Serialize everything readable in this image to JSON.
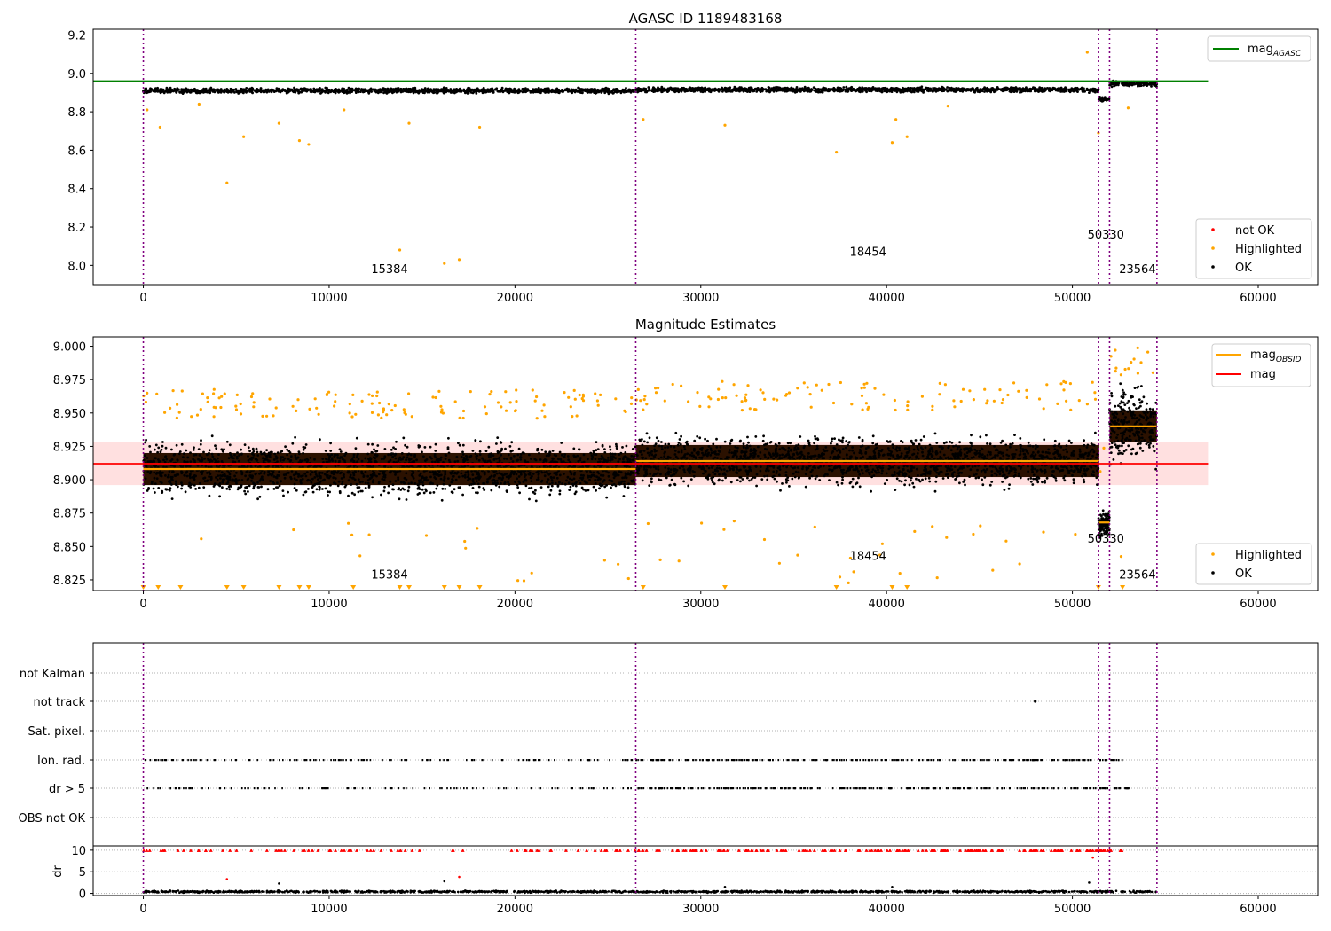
{
  "chart_data": [
    {
      "type": "scatter",
      "title": "AGASC ID 1189483168",
      "xlim": [
        -2700,
        63200
      ],
      "ylim": [
        7.9,
        9.23
      ],
      "xticks": [
        "0",
        "10000",
        "20000",
        "30000",
        "40000",
        "50000",
        "60000"
      ],
      "yticks": [
        "8.0",
        "8.2",
        "8.4",
        "8.6",
        "8.8",
        "9.0",
        "9.2"
      ],
      "reference_line": {
        "name": "mag_AGASC",
        "value": 8.96,
        "x_range": [
          -2700,
          57300
        ],
        "color": "#008000"
      },
      "observation_boundaries": [
        0,
        26500,
        51400,
        52000,
        54550
      ],
      "observation_labels": [
        {
          "text": "15384",
          "x": 13250,
          "y": 7.96
        },
        {
          "text": "18454",
          "x": 39000,
          "y": 8.05
        },
        {
          "text": "50330",
          "x": 51800,
          "y": 8.14
        },
        {
          "text": "23564",
          "x": 53500,
          "y": 7.96
        }
      ],
      "series": [
        {
          "name": "not OK",
          "color": "#ff0000",
          "values": []
        },
        {
          "name": "Highlighted",
          "color": "#ffa500",
          "points": [
            [
              4500,
              8.43
            ],
            [
              13800,
              8.08
            ],
            [
              16200,
              8.01
            ],
            [
              17000,
              8.03
            ],
            [
              37300,
              8.59
            ],
            [
              5400,
              8.67
            ],
            [
              900,
              8.72
            ],
            [
              7300,
              8.74
            ],
            [
              8400,
              8.65
            ],
            [
              8900,
              8.63
            ],
            [
              14300,
              8.74
            ],
            [
              18100,
              8.72
            ],
            [
              31300,
              8.73
            ],
            [
              40300,
              8.64
            ],
            [
              41100,
              8.67
            ],
            [
              51400,
              8.69
            ],
            [
              50800,
              9.11
            ],
            [
              53000,
              8.82
            ],
            [
              200,
              8.81
            ],
            [
              3000,
              8.84
            ],
            [
              10800,
              8.81
            ],
            [
              26900,
              8.76
            ],
            [
              40500,
              8.76
            ],
            [
              43300,
              8.83
            ]
          ]
        },
        {
          "name": "OK",
          "color": "#000000",
          "segments": [
            {
              "x": [
                0,
                26500
              ],
              "y": [
                8.91,
                8.91
              ],
              "spread": 0.035
            },
            {
              "x": [
                26500,
                51400
              ],
              "y": [
                8.915,
                8.915
              ],
              "spread": 0.035
            },
            {
              "x": [
                51400,
                52000
              ],
              "y": [
                8.865,
                8.865
              ],
              "spread": 0.03
            },
            {
              "x": [
                52000,
                54550
              ],
              "y": [
                8.945,
                8.945
              ],
              "spread": 0.04
            }
          ]
        }
      ],
      "legend_upper": [
        "mag_AGASC"
      ],
      "legend_lower": [
        "not OK",
        "Highlighted",
        "OK"
      ]
    },
    {
      "type": "scatter",
      "title": "Magnitude Estimates",
      "xlim": [
        -2700,
        63200
      ],
      "ylim": [
        8.817,
        9.007
      ],
      "xticks": [
        "0",
        "10000",
        "20000",
        "30000",
        "40000",
        "50000",
        "60000"
      ],
      "yticks": [
        "8.825",
        "8.850",
        "8.875",
        "8.900",
        "8.925",
        "8.950",
        "8.975",
        "9.000"
      ],
      "mag": {
        "name": "mag",
        "value": 8.912,
        "band": [
          8.896,
          8.928
        ],
        "x_range": [
          -2700,
          57300
        ],
        "color": "#ff0000"
      },
      "mag_obsid": {
        "name": "mag_OBSID",
        "color": "#ffa500",
        "values": [
          {
            "x": [
              0,
              26500
            ],
            "y": 8.908
          },
          {
            "x": [
              26500,
              51400
            ],
            "y": 8.914
          },
          {
            "x": [
              51400,
              52000
            ],
            "y": 8.868
          },
          {
            "x": [
              52000,
              54550
            ],
            "y": 8.94
          }
        ]
      },
      "observation_boundaries": [
        0,
        26500,
        51400,
        52000,
        54550
      ],
      "observation_labels": [
        {
          "text": "15384",
          "x": 13250,
          "y": 8.826
        },
        {
          "text": "18454",
          "x": 39000,
          "y": 8.84
        },
        {
          "text": "50330",
          "x": 51800,
          "y": 8.853
        },
        {
          "text": "23564",
          "x": 53500,
          "y": 8.826
        }
      ],
      "series": [
        {
          "name": "Highlighted",
          "color": "#ffa500"
        },
        {
          "name": "OK",
          "color": "#000000"
        }
      ],
      "legend_upper": [
        "mag_OBSID",
        "mag"
      ],
      "legend_lower": [
        "Highlighted",
        "OK"
      ]
    },
    {
      "type": "scatter",
      "title": "",
      "xlim": [
        -2700,
        63200
      ],
      "xticks": [
        "0",
        "10000",
        "20000",
        "30000",
        "40000",
        "50000",
        "60000"
      ],
      "flag_rows": [
        "not Kalman",
        "not track",
        "Sat. pixel.",
        "Ion. rad.",
        "dr > 5",
        "OBS not OK"
      ],
      "flag_points": {
        "not Kalman": [],
        "not track": [
          48000
        ],
        "Sat. pixel.": [],
        "Ion. rad.": "density:0.45",
        "dr > 5": "density:0.45",
        "OBS not OK": []
      },
      "observation_boundaries": [
        0,
        26500,
        51400,
        52000,
        54550
      ],
      "dr_panel": {
        "ylabel": "dr",
        "ylim": [
          -0.5,
          11
        ],
        "yticks": [
          "0",
          "5",
          "10"
        ],
        "dr_values_near": 0.4,
        "clipped_at": 10,
        "outliers": [
          [
            4500,
            3.3
          ],
          [
            7300,
            2.3
          ],
          [
            16200,
            2.8
          ],
          [
            17000,
            3.8
          ],
          [
            51100,
            8.3
          ],
          [
            50900,
            2.5
          ],
          [
            40300,
            1.5
          ],
          [
            31300,
            1.5
          ]
        ]
      }
    }
  ]
}
